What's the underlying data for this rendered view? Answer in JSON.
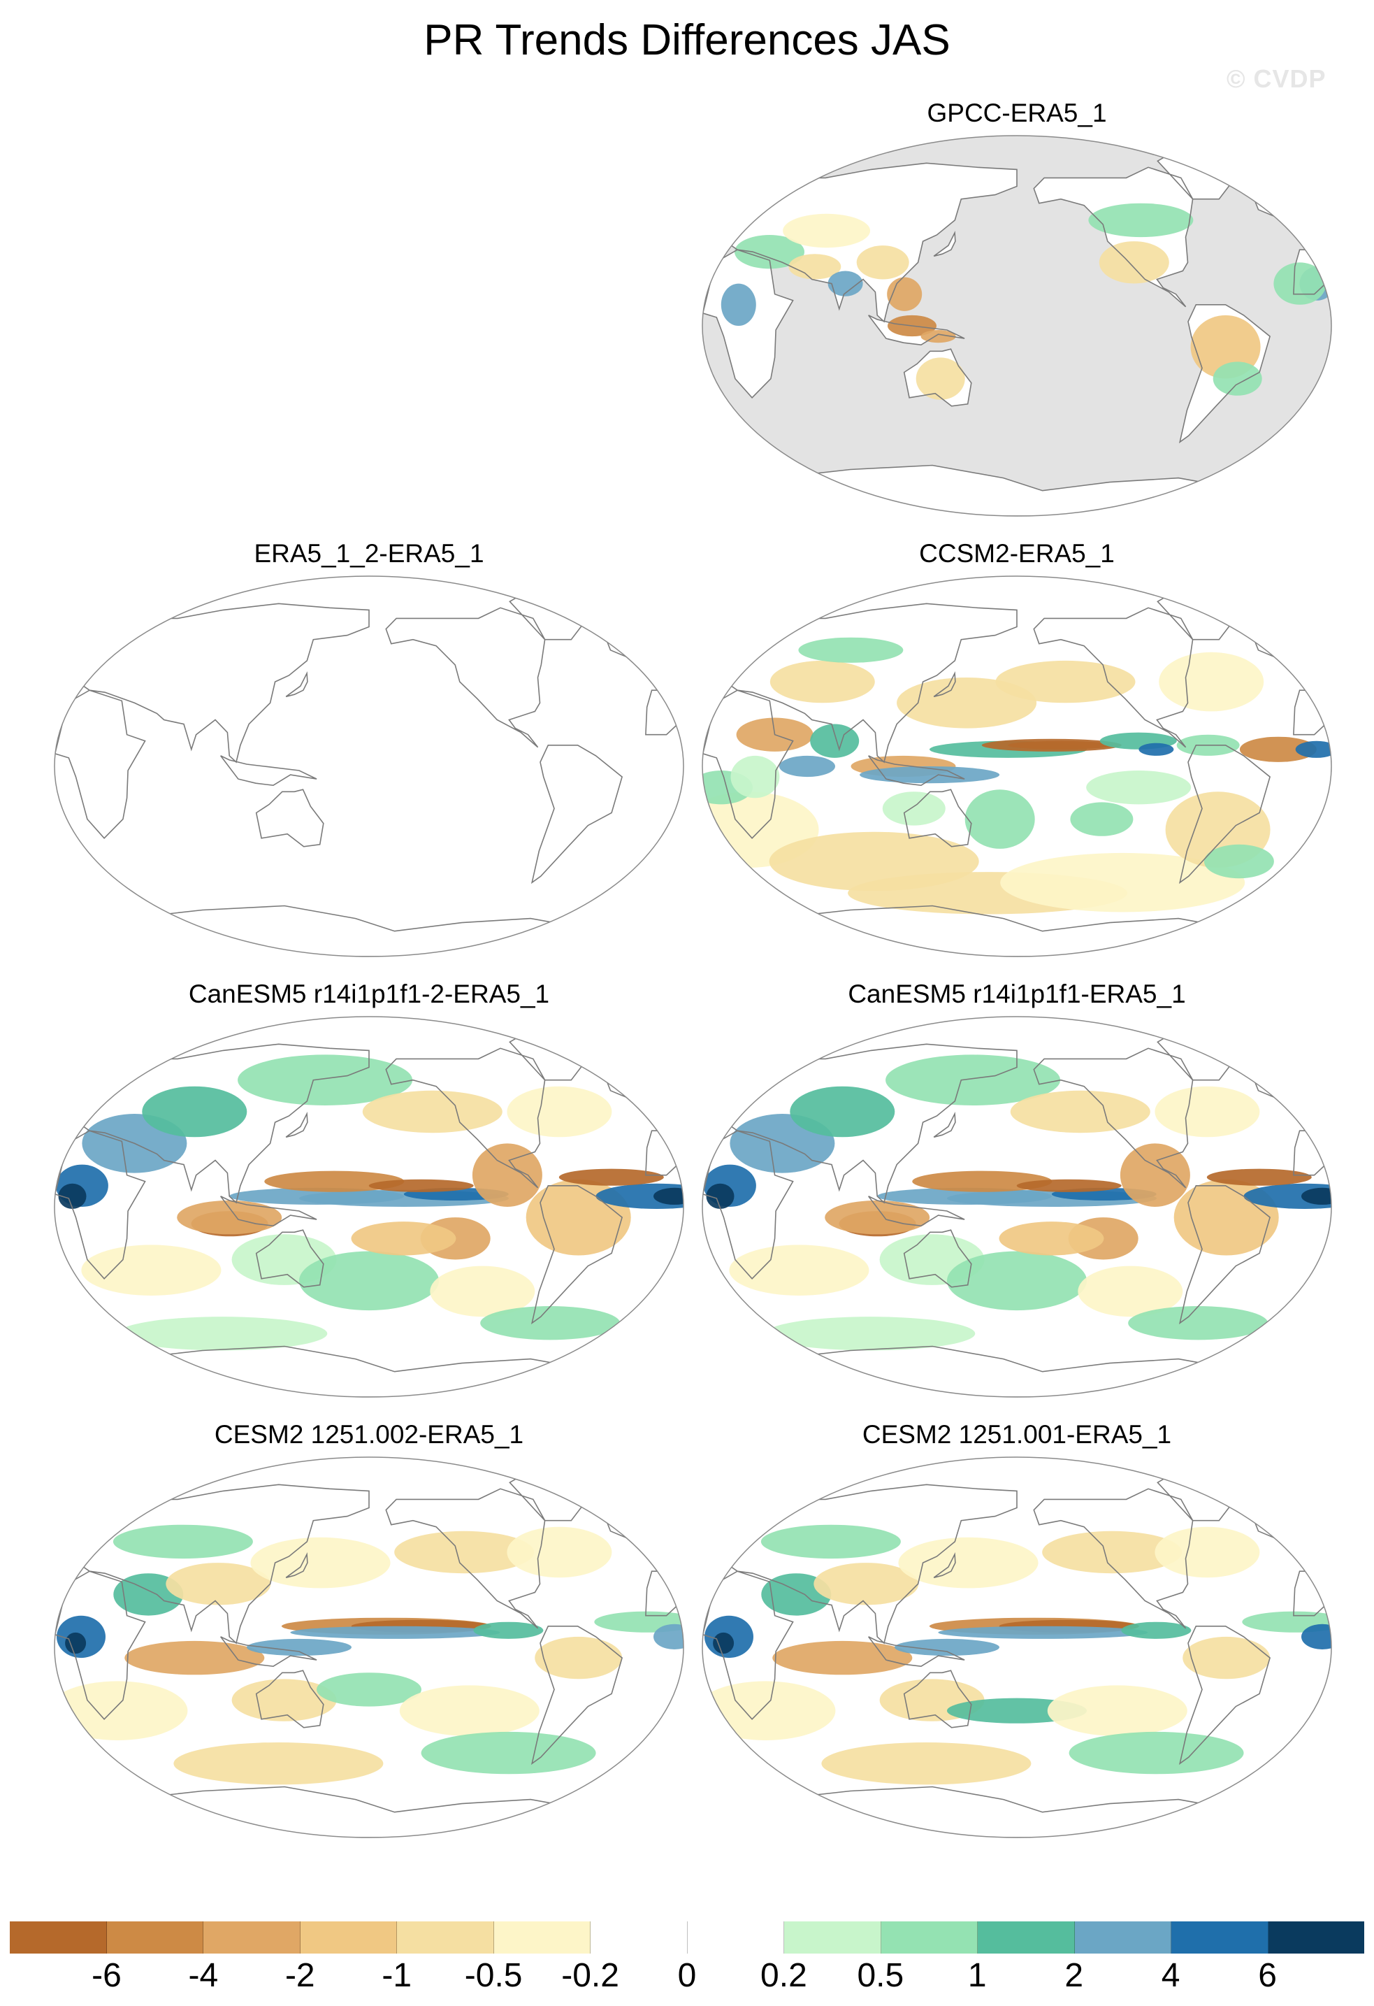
{
  "title": "PR Trends Differences JAS",
  "watermark": "© CVDP",
  "colorbar": {
    "colors": [
      "#b5692b",
      "#cd8a45",
      "#e0a765",
      "#f0c883",
      "#f5dfa2",
      "#fdf5c8",
      "#ffffff",
      "#ffffff",
      "#c8f5cb",
      "#94e2b2",
      "#55bd9d",
      "#6ba6c5",
      "#1f6fab",
      "#0a3a5e"
    ],
    "labels": [
      "-6",
      "-4",
      "-2",
      "-1",
      "-0.5",
      "-0.2",
      "0",
      "0.2",
      "0.5",
      "1",
      "2",
      "4",
      "6"
    ]
  },
  "panels": [
    {
      "id": "gpcc",
      "title": "GPCC-ERA5_1",
      "fill": "land-only"
    },
    {
      "id": "era5-2",
      "title": "ERA5_1_2-ERA5_1",
      "fill": "none"
    },
    {
      "id": "ccsm2",
      "title": "CCSM2-ERA5_1",
      "fill": "field"
    },
    {
      "id": "canesm5-2",
      "title": "CanESM5 r14i1p1f1-2-ERA5_1",
      "fill": "field"
    },
    {
      "id": "canesm5-1",
      "title": "CanESM5 r14i1p1f1-ERA5_1",
      "fill": "field"
    },
    {
      "id": "cesm2-002",
      "title": "CESM2 1251.002-ERA5_1",
      "fill": "field"
    },
    {
      "id": "cesm2-001",
      "title": "CESM2 1251.001-ERA5_1",
      "fill": "field"
    }
  ]
}
